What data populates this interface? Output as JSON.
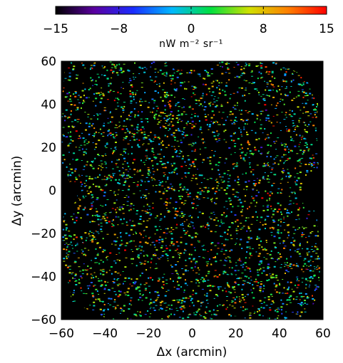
{
  "chart_data": {
    "type": "heatmap",
    "colorbar": {
      "colormap": "rainbow",
      "range": [
        -15,
        15
      ],
      "ticks": [
        -15,
        -8,
        0,
        8,
        15
      ],
      "tick_labels": [
        "−15",
        "−8",
        "0",
        "8",
        "15"
      ],
      "units": "nW m⁻² sr⁻¹",
      "colors": [
        "#000000",
        "#5a00a0",
        "#1a2cff",
        "#00b8ff",
        "#00e040",
        "#d0e000",
        "#ff8000",
        "#ff0000"
      ]
    },
    "xlabel": "Δx (arcmin)",
    "ylabel": "Δy (arcmin)",
    "xlim": [
      -60,
      60
    ],
    "ylim": [
      -60,
      60
    ],
    "x_ticks": [
      -60,
      -40,
      -20,
      0,
      20,
      40,
      60
    ],
    "x_tick_labels": [
      "−60",
      "−40",
      "−20",
      "0",
      "20",
      "40",
      "60"
    ],
    "y_ticks": [
      -60,
      -40,
      -20,
      0,
      20,
      40,
      60
    ],
    "y_tick_labels": [
      "−60",
      "−40",
      "−20",
      "0",
      "20",
      "40",
      "60"
    ],
    "background_color": "#000000",
    "grid": false
  }
}
